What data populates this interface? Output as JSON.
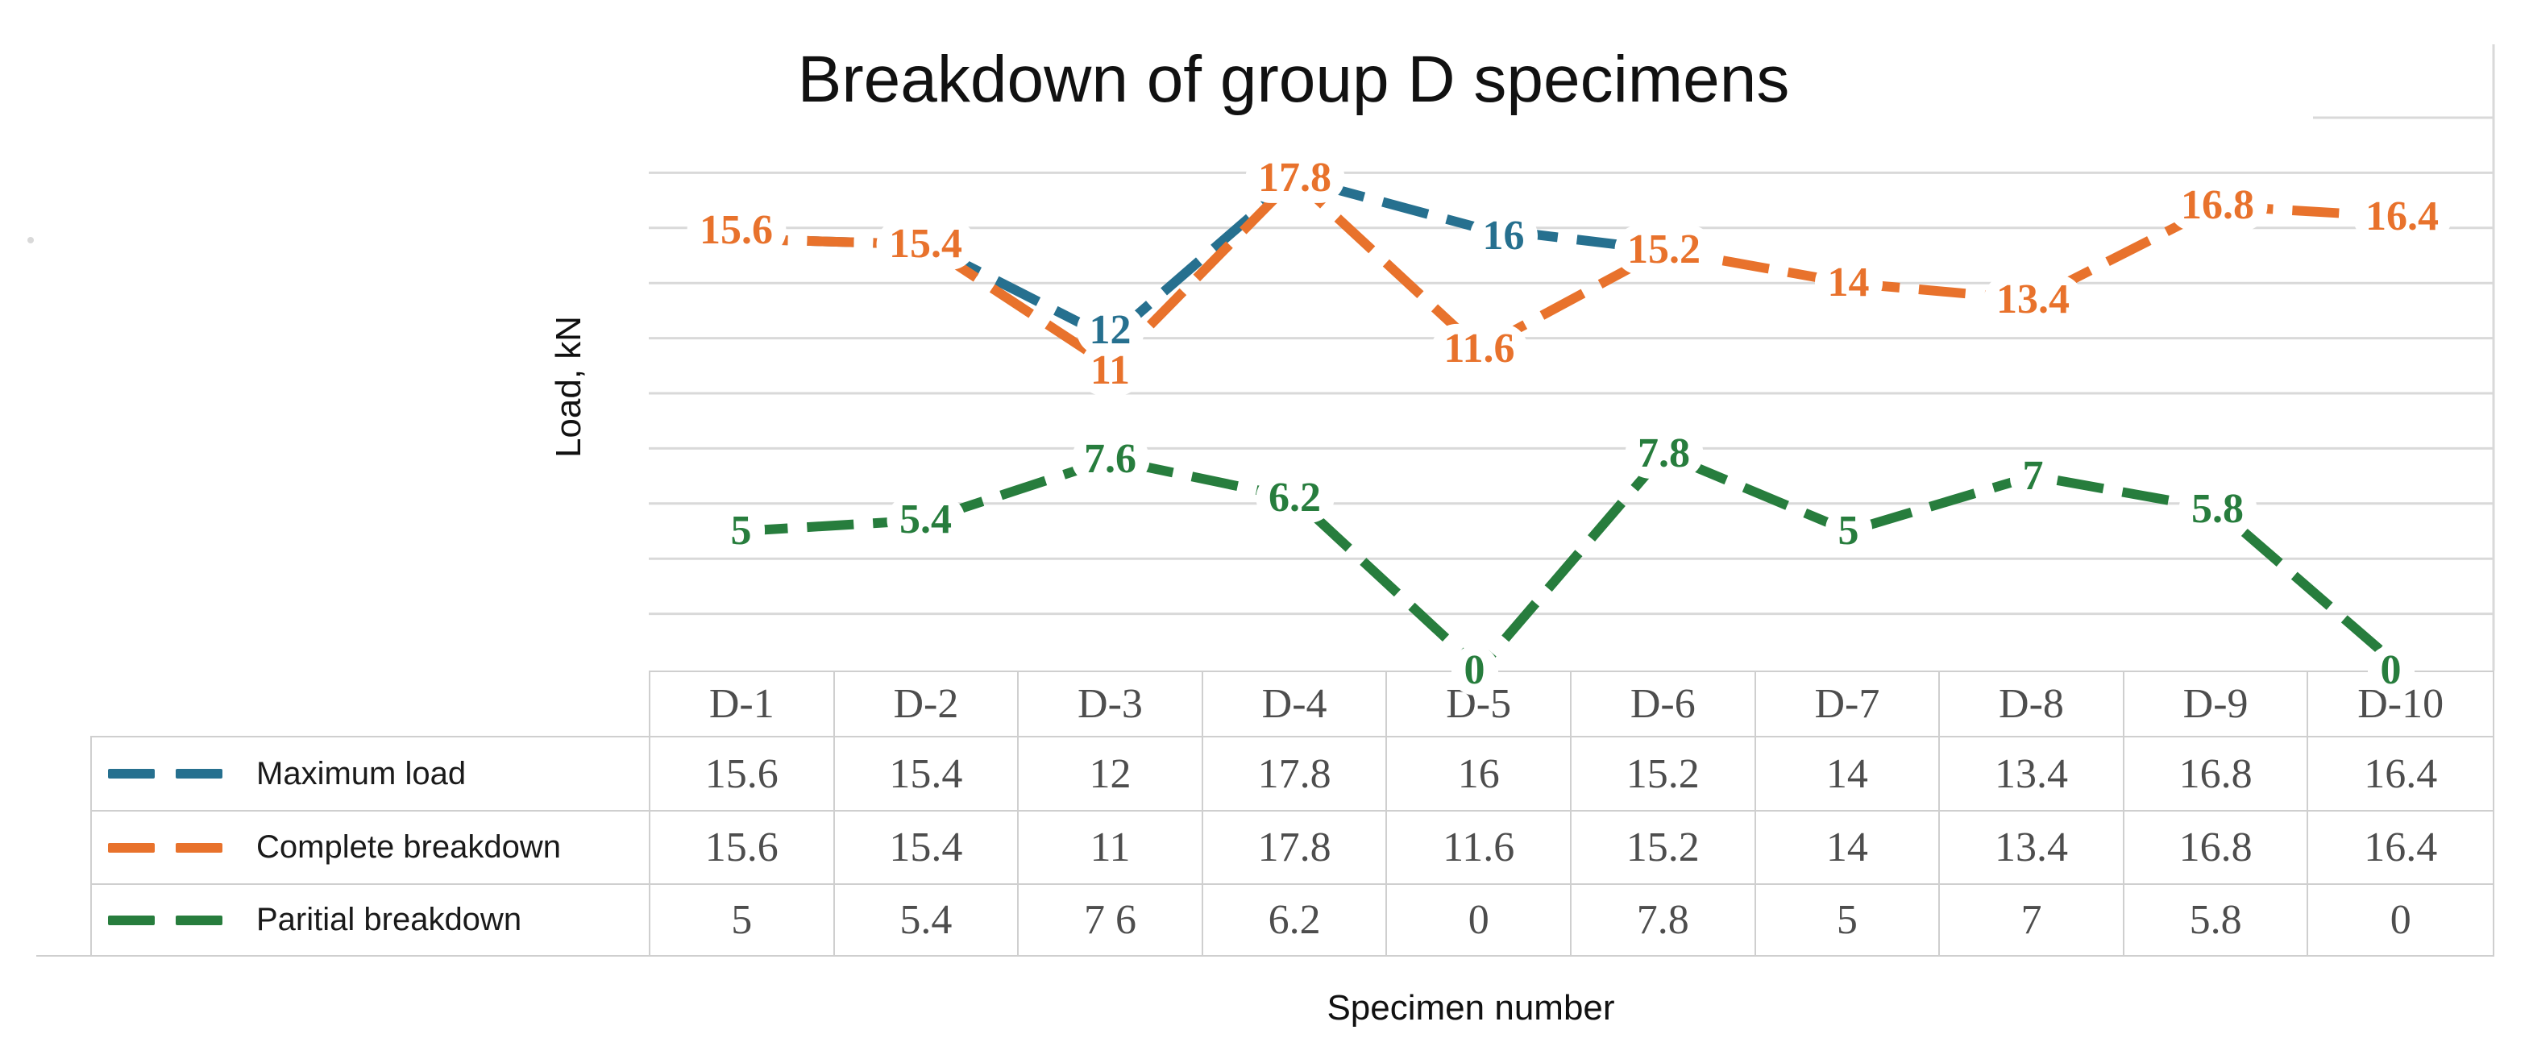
{
  "title": "Breakdown of group D specimens",
  "axes": {
    "y_label": "Load, kN",
    "x_label": "Specimen number"
  },
  "legend": {
    "items": [
      "Maximum load",
      "Complete breakdown",
      "Paritial breakdown"
    ]
  },
  "table": {
    "headers": [
      "D-1",
      "D-2",
      "D-3",
      "D-4",
      "D-5",
      "D-6",
      "D-7",
      "D-8",
      "D-9",
      "D-10"
    ],
    "rows": [
      {
        "series": "Maximum load",
        "cells": [
          "15.6",
          "15.4",
          "12",
          "17.8",
          "16",
          "15.2",
          "14",
          "13.4",
          "16.8",
          "16.4"
        ]
      },
      {
        "series": "Complete breakdown",
        "cells": [
          "15.6",
          "15.4",
          "11",
          "17.8",
          "11.6",
          "15.2",
          "14",
          "13.4",
          "16.8",
          "16.4"
        ]
      },
      {
        "series": "Paritial breakdown",
        "cells": [
          "5",
          "5.4",
          "7 6",
          "6.2",
          "0",
          "7.8",
          "5",
          "7",
          "5.8",
          "0"
        ]
      }
    ]
  },
  "colors": {
    "maximum_load": "#26708F",
    "complete_breakdown": "#E8722C",
    "partial_breakdown": "#277D3D",
    "gridline": "#D9D9D9",
    "table_border": "#CFCFCF",
    "table_text": "#4D4D4D",
    "title_text": "#111111"
  },
  "chart_data": {
    "type": "line",
    "title": "Breakdown of group D specimens",
    "xlabel": "Specimen number",
    "ylabel": "Load, kN",
    "categories": [
      "D-1",
      "D-2",
      "D-3",
      "D-4",
      "D-5",
      "D-6",
      "D-7",
      "D-8",
      "D-9",
      "D-10"
    ],
    "series": [
      {
        "name": "Maximum load",
        "color": "#26708F",
        "values": [
          15.6,
          15.4,
          12,
          17.8,
          16,
          15.2,
          14,
          13.4,
          16.8,
          16.4
        ]
      },
      {
        "name": "Complete breakdown",
        "color": "#E8722C",
        "values": [
          15.6,
          15.4,
          11,
          17.8,
          11.6,
          15.2,
          14,
          13.4,
          16.8,
          16.4
        ]
      },
      {
        "name": "Paritial breakdown",
        "color": "#277D3D",
        "values": [
          5,
          5.4,
          7.6,
          6.2,
          0,
          7.8,
          5,
          7,
          5.8,
          0
        ]
      }
    ],
    "ylim": [
      0,
      20
    ],
    "gridline_step": 2,
    "grid": true,
    "line_style": "dashed",
    "data_labels": "values shown centered on points with white halo",
    "legend_position": "left column of bottom data table",
    "notes": "Maximum load line hidden behind Complete breakdown where values coincide (D-1/D-2, D-4, D-6 to D-10); table cell D-3 of Paritial breakdown renders as '7 6' (faded decimal point)"
  }
}
